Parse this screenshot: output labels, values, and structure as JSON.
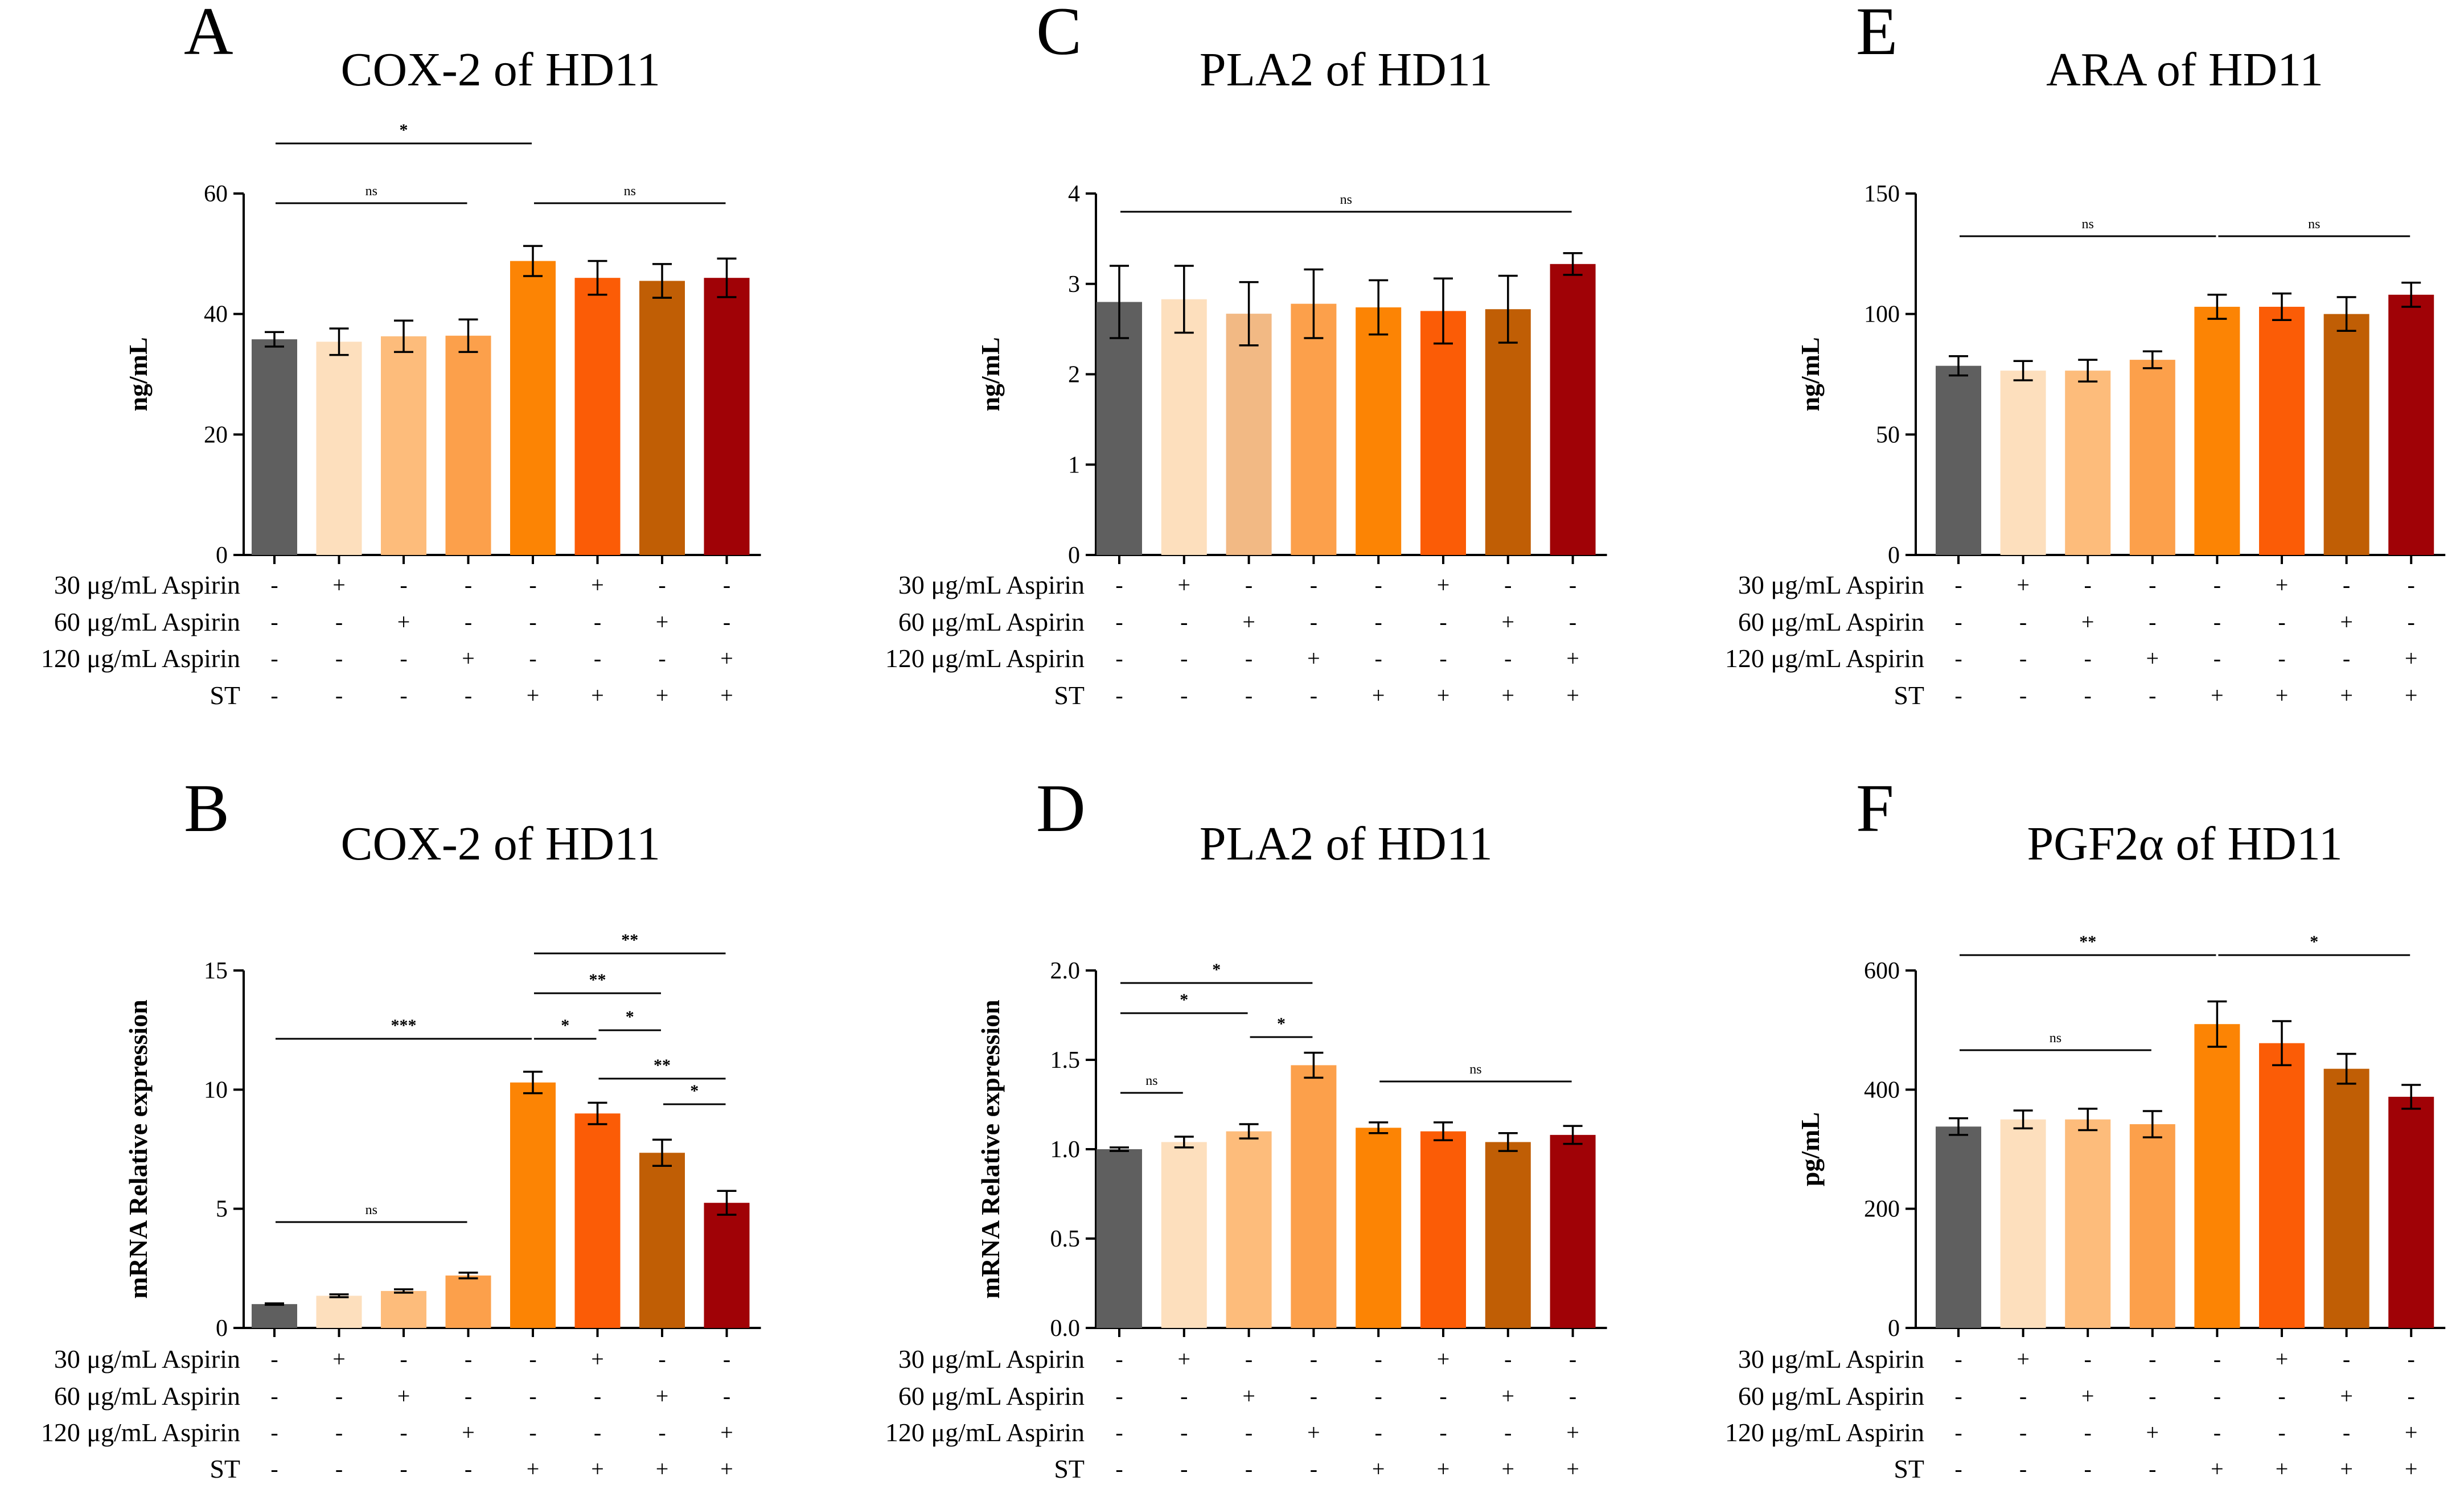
{
  "figure": {
    "treatment_labels": [
      "30 μg/mL Aspirin",
      "60 μg/mL Aspirin",
      "120 μg/mL Aspirin",
      "ST"
    ],
    "treatment_signs": [
      [
        "-",
        "+",
        "-",
        "-",
        "-",
        "+",
        "-",
        "-"
      ],
      [
        "-",
        "-",
        "+",
        "-",
        "-",
        "-",
        "+",
        "-"
      ],
      [
        "-",
        "-",
        "-",
        "+",
        "-",
        "-",
        "-",
        "+"
      ],
      [
        "-",
        "-",
        "-",
        "-",
        "+",
        "+",
        "+",
        "+"
      ]
    ],
    "bar_colors": [
      "#5f5f5f",
      "#fddfbd",
      "#fdbc7b",
      "#fca04b",
      "#fc8404",
      "#fb5c06",
      "#c05e05",
      "#a00206"
    ],
    "colors_panel_c": [
      "#5f5f5f",
      "#fddfbd",
      "#f2b984",
      "#fca04b",
      "#fc8404",
      "#fb5c06",
      "#c05e05",
      "#a00206"
    ]
  },
  "chart_data": [
    {
      "panel": "A",
      "type": "bar",
      "title": "COX-2 of HD11",
      "ylabel": "ng/mL",
      "ylim": [
        0,
        60
      ],
      "yticks": [
        0,
        20,
        40,
        60
      ],
      "categories": [
        "1",
        "2",
        "3",
        "4",
        "5",
        "6",
        "7",
        "8"
      ],
      "values": [
        35.8,
        35.4,
        36.3,
        36.4,
        48.8,
        46.0,
        45.5,
        46.0
      ],
      "errors": [
        1.2,
        2.2,
        2.6,
        2.7,
        2.5,
        2.8,
        2.8,
        3.2
      ],
      "significance": [
        {
          "from": 1,
          "to": 5,
          "label": "*"
        },
        {
          "from": 1,
          "to": 4,
          "label": "ns"
        },
        {
          "from": 5,
          "to": 8,
          "label": "ns"
        }
      ]
    },
    {
      "panel": "B",
      "type": "bar",
      "title": "COX-2 of HD11",
      "ylabel": "mRNA Relative expression",
      "ylim": [
        0,
        15
      ],
      "yticks": [
        0,
        5,
        10,
        15
      ],
      "categories": [
        "1",
        "2",
        "3",
        "4",
        "5",
        "6",
        "7",
        "8"
      ],
      "values": [
        1.0,
        1.35,
        1.55,
        2.2,
        10.3,
        9.0,
        7.35,
        5.25
      ],
      "errors": [
        0.03,
        0.06,
        0.07,
        0.12,
        0.45,
        0.45,
        0.55,
        0.5
      ],
      "significance": [
        {
          "from": 5,
          "to": 8,
          "label": "**"
        },
        {
          "from": 5,
          "to": 7,
          "label": "**"
        },
        {
          "from": 6,
          "to": 7,
          "label": "*"
        },
        {
          "from": 1,
          "to": 5,
          "label": "***"
        },
        {
          "from": 5,
          "to": 6,
          "label": "*"
        },
        {
          "from": 6,
          "to": 8,
          "label": "**"
        },
        {
          "from": 7,
          "to": 8,
          "label": "*"
        },
        {
          "from": 1,
          "to": 4,
          "label": "ns"
        }
      ]
    },
    {
      "panel": "C",
      "type": "bar",
      "title": "PLA2 of HD11",
      "ylabel": "ng/mL",
      "ylim": [
        0,
        4
      ],
      "yticks": [
        0,
        1,
        2,
        3,
        4
      ],
      "categories": [
        "1",
        "2",
        "3",
        "4",
        "5",
        "6",
        "7",
        "8"
      ],
      "values": [
        2.8,
        2.83,
        2.67,
        2.78,
        2.74,
        2.7,
        2.72,
        3.22
      ],
      "errors": [
        0.4,
        0.37,
        0.35,
        0.38,
        0.3,
        0.36,
        0.37,
        0.12
      ],
      "significance": [
        {
          "from": 1,
          "to": 8,
          "label": "ns"
        }
      ]
    },
    {
      "panel": "D",
      "type": "bar",
      "title": "PLA2 of HD11",
      "ylabel": "mRNA Relative expression",
      "ylim": [
        0,
        2.0
      ],
      "yticks": [
        0.0,
        0.5,
        1.0,
        1.5,
        2.0
      ],
      "categories": [
        "1",
        "2",
        "3",
        "4",
        "5",
        "6",
        "7",
        "8"
      ],
      "values": [
        1.0,
        1.04,
        1.1,
        1.47,
        1.12,
        1.1,
        1.04,
        1.08
      ],
      "errors": [
        0.01,
        0.03,
        0.04,
        0.07,
        0.03,
        0.05,
        0.05,
        0.05
      ],
      "significance": [
        {
          "from": 1,
          "to": 4,
          "label": "*"
        },
        {
          "from": 3,
          "to": 4,
          "label": "*"
        },
        {
          "from": 1,
          "to": 3,
          "label": "*"
        },
        {
          "from": 1,
          "to": 2,
          "label": "ns"
        },
        {
          "from": 5,
          "to": 8,
          "label": "ns"
        }
      ]
    },
    {
      "panel": "E",
      "type": "bar",
      "title": "ARA of HD11",
      "ylabel": "ng/mL",
      "ylim": [
        0,
        150
      ],
      "yticks": [
        0,
        50,
        100,
        150
      ],
      "categories": [
        "1",
        "2",
        "3",
        "4",
        "5",
        "6",
        "7",
        "8"
      ],
      "values": [
        78.5,
        76.5,
        76.5,
        81.0,
        103.0,
        103.0,
        100.0,
        108.0
      ],
      "errors": [
        4.0,
        4.0,
        4.5,
        3.5,
        5.0,
        5.5,
        7.0,
        5.0
      ],
      "significance": [
        {
          "from": 1,
          "to": 5,
          "label": "ns"
        },
        {
          "from": 5,
          "to": 8,
          "label": "ns"
        }
      ]
    },
    {
      "panel": "F",
      "type": "bar",
      "title": "PGF2α of HD11",
      "ylabel": "pg/mL",
      "ylim": [
        0,
        600
      ],
      "yticks": [
        0,
        200,
        400,
        600
      ],
      "categories": [
        "1",
        "2",
        "3",
        "4",
        "5",
        "6",
        "7",
        "8"
      ],
      "values": [
        338,
        350,
        350,
        342,
        510,
        478,
        435,
        388
      ],
      "errors": [
        14,
        15,
        18,
        22,
        38,
        37,
        25,
        20
      ],
      "significance": [
        {
          "from": 1,
          "to": 5,
          "label": "**"
        },
        {
          "from": 5,
          "to": 8,
          "label": "*"
        },
        {
          "from": 1,
          "to": 4,
          "label": "ns"
        }
      ]
    }
  ]
}
